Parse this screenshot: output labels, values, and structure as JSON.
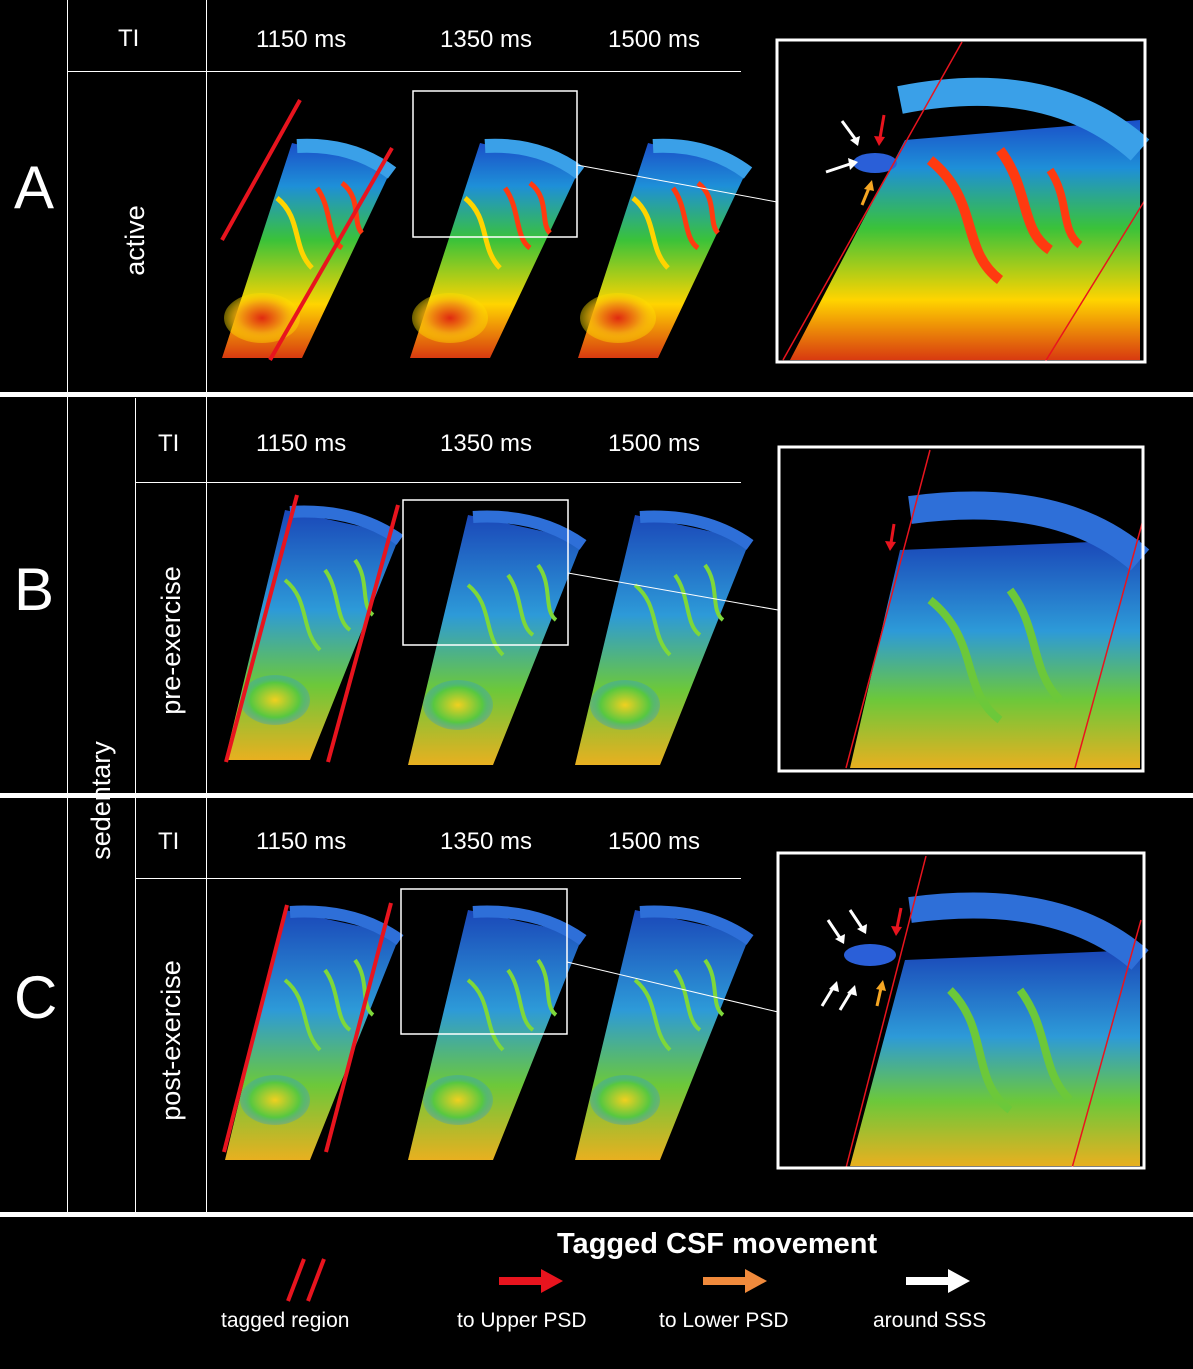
{
  "panels": [
    {
      "letter": "A",
      "group": "",
      "condition": "active",
      "ti_label": "TI",
      "times": [
        "1150 ms",
        "1350 ms",
        "1500 ms"
      ],
      "palette": "hot"
    },
    {
      "letter": "B",
      "group": "sedentary",
      "condition": "pre-exercise",
      "ti_label": "TI",
      "times": [
        "1150 ms",
        "1350 ms",
        "1500 ms"
      ],
      "palette": "cool"
    },
    {
      "letter": "C",
      "group": "sedentary",
      "condition": "post-exercise",
      "ti_label": "TI",
      "times": [
        "1150 ms",
        "1350 ms",
        "1500 ms"
      ],
      "palette": "cool"
    }
  ],
  "shared_group_label": "sedentary",
  "legend": {
    "title": "Tagged CSF movement",
    "items": [
      {
        "label": "tagged region",
        "icon": "double-slash-icon",
        "color": "#e8141e"
      },
      {
        "label": "to Upper PSD",
        "icon": "arrow-right-icon",
        "color": "#e8141e"
      },
      {
        "label": "to Lower PSD",
        "icon": "arrow-right-icon",
        "color": "#f08a3c"
      },
      {
        "label": "around SSS",
        "icon": "arrow-right-icon",
        "color": "#ffffff"
      }
    ]
  },
  "colors": {
    "background": "#000000",
    "lines": "#ffffff",
    "tag_red": "#e8141e",
    "orange_arrow": "#f5a623"
  }
}
